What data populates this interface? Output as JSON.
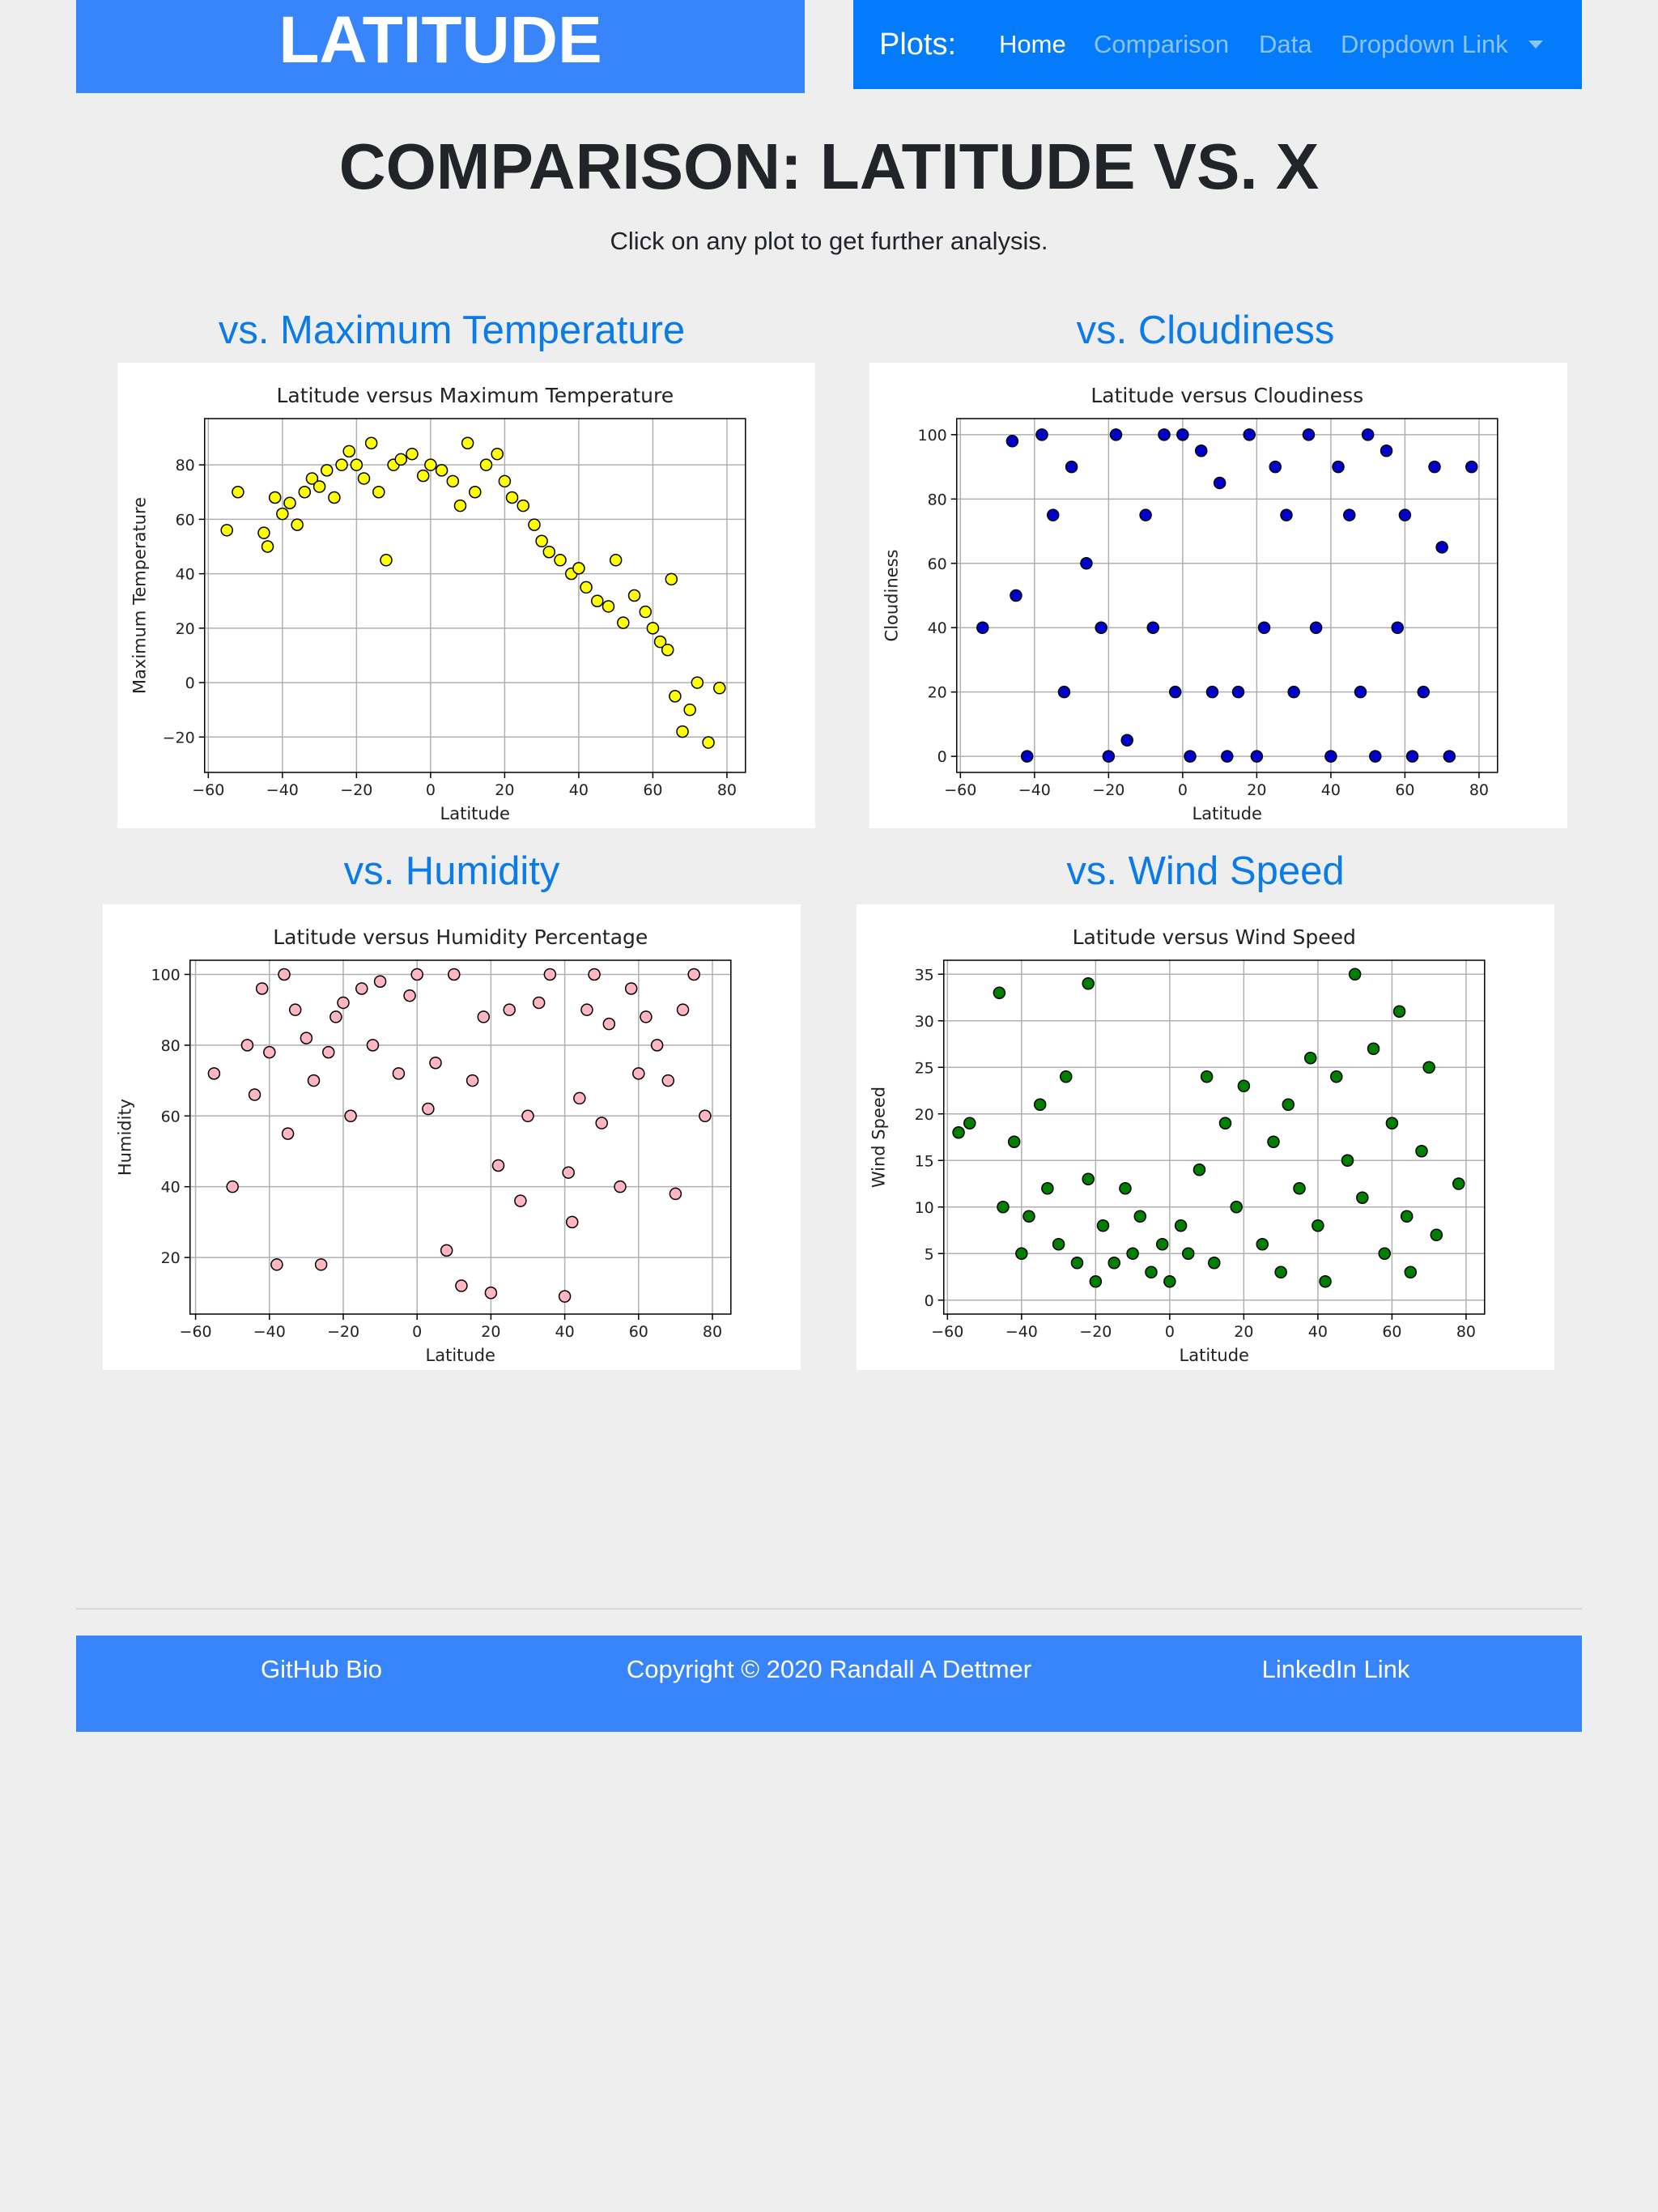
{
  "header": {
    "brand": "LATITUDE"
  },
  "nav": {
    "label": "Plots:",
    "links": [
      "Home",
      "Comparison",
      "Data",
      "Dropdown Link"
    ]
  },
  "page": {
    "title": "COMPARISON: LATITUDE VS. X",
    "subtitle": "Click on any plot to get further analysis."
  },
  "section_headings": [
    "vs. Maximum Temperature",
    "vs. Cloudiness",
    "vs. Humidity",
    "vs. Wind Speed"
  ],
  "footer": {
    "left": "GitHub Bio",
    "center": "Copyright © 2020 Randall A Dettmer",
    "right": "LinkedIn Link"
  },
  "chart_data": [
    {
      "type": "scatter",
      "title": "Latitude versus Maximum Temperature",
      "x_label": "Latitude",
      "y_label": "Maximum Temperature",
      "color": "#ffff00",
      "grid": true,
      "xlim": [
        -61,
        85
      ],
      "ylim": [
        -33,
        97
      ],
      "xticks": [
        {
          "value": -60,
          "label": "−60"
        },
        {
          "value": -40,
          "label": "−40"
        },
        {
          "value": -20,
          "label": "−20"
        },
        0,
        20,
        40,
        60,
        80
      ],
      "yticks": [
        {
          "value": -20,
          "label": "−20"
        },
        0,
        20,
        40,
        60,
        80
      ],
      "x": [
        -55,
        -52,
        -45,
        -44,
        -42,
        -40,
        -38,
        -36,
        -34,
        -32,
        -30,
        -28,
        -26,
        -24,
        -22,
        -20,
        -18,
        -16,
        -14,
        -12,
        -10,
        -8,
        -5,
        -2,
        0,
        3,
        6,
        8,
        10,
        12,
        15,
        18,
        20,
        22,
        25,
        28,
        30,
        32,
        35,
        38,
        40,
        42,
        45,
        48,
        50,
        52,
        55,
        58,
        60,
        62,
        64,
        65,
        66,
        68,
        70,
        72,
        75,
        78
      ],
      "values": [
        56,
        70,
        55,
        50,
        68,
        62,
        66,
        58,
        70,
        75,
        72,
        78,
        68,
        80,
        85,
        80,
        75,
        88,
        70,
        45,
        80,
        82,
        84,
        76,
        80,
        78,
        74,
        65,
        88,
        70,
        80,
        84,
        74,
        68,
        65,
        58,
        52,
        48,
        45,
        40,
        42,
        35,
        30,
        28,
        45,
        22,
        32,
        26,
        20,
        15,
        12,
        38,
        -5,
        -18,
        -10,
        0,
        -22,
        -2
      ]
    },
    {
      "type": "scatter",
      "title": "Latitude versus Cloudiness",
      "x_label": "Latitude",
      "y_label": "Cloudiness",
      "color": "#0000cc",
      "grid": true,
      "xlim": [
        -61,
        85
      ],
      "ylim": [
        -5,
        105
      ],
      "xticks": [
        {
          "value": -60,
          "label": "−60"
        },
        {
          "value": -40,
          "label": "−40"
        },
        {
          "value": -20,
          "label": "−20"
        },
        0,
        20,
        40,
        60,
        80
      ],
      "yticks": [
        0,
        20,
        40,
        60,
        80,
        100
      ],
      "x": [
        -54,
        -46,
        -45,
        -42,
        -38,
        -35,
        -32,
        -30,
        -26,
        -22,
        -20,
        -18,
        -15,
        -10,
        -8,
        -5,
        -2,
        0,
        2,
        5,
        8,
        10,
        12,
        15,
        18,
        20,
        22,
        25,
        28,
        30,
        34,
        36,
        40,
        42,
        45,
        48,
        50,
        52,
        55,
        58,
        60,
        62,
        65,
        68,
        70,
        72,
        78
      ],
      "values": [
        40,
        98,
        50,
        0,
        100,
        75,
        20,
        90,
        60,
        40,
        0,
        100,
        5,
        75,
        40,
        100,
        20,
        100,
        0,
        95,
        20,
        85,
        0,
        20,
        100,
        0,
        40,
        90,
        75,
        20,
        100,
        40,
        0,
        90,
        75,
        20,
        100,
        0,
        95,
        40,
        75,
        0,
        20,
        90,
        65,
        0,
        90
      ]
    },
    {
      "type": "scatter",
      "title": "Latitude versus Humidity Percentage",
      "x_label": "Latitude",
      "y_label": "Humidity",
      "color": "#ffb6c1",
      "grid": true,
      "xlim": [
        -61.5,
        85
      ],
      "ylim": [
        4,
        104
      ],
      "xticks": [
        {
          "value": -60,
          "label": "−60"
        },
        {
          "value": -40,
          "label": "−40"
        },
        {
          "value": -20,
          "label": "−20"
        },
        0,
        20,
        40,
        60,
        80
      ],
      "yticks": [
        20,
        40,
        60,
        80,
        100
      ],
      "x": [
        -55,
        -50,
        -46,
        -44,
        -42,
        -40,
        -38,
        -36,
        -35,
        -33,
        -30,
        -28,
        -26,
        -24,
        -22,
        -20,
        -18,
        -15,
        -12,
        -10,
        -5,
        -2,
        0,
        3,
        5,
        8,
        10,
        12,
        15,
        18,
        20,
        22,
        25,
        28,
        30,
        33,
        36,
        40,
        41,
        42,
        44,
        46,
        48,
        50,
        52,
        55,
        58,
        60,
        62,
        65,
        68,
        70,
        72,
        75,
        78
      ],
      "values": [
        72,
        40,
        80,
        66,
        96,
        78,
        18,
        100,
        55,
        90,
        82,
        70,
        18,
        78,
        88,
        92,
        60,
        96,
        80,
        98,
        72,
        94,
        100,
        62,
        75,
        22,
        100,
        12,
        70,
        88,
        10,
        46,
        90,
        36,
        60,
        92,
        100,
        9,
        44,
        30,
        65,
        90,
        100,
        58,
        86,
        40,
        96,
        72,
        88,
        80,
        70,
        38,
        90,
        100,
        60
      ]
    },
    {
      "type": "scatter",
      "title": "Latitude versus Wind Speed",
      "x_label": "Latitude",
      "y_label": "Wind Speed",
      "color": "#008000",
      "grid": true,
      "xlim": [
        -61,
        85
      ],
      "ylim": [
        -1.5,
        36.5
      ],
      "xticks": [
        {
          "value": -60,
          "label": "−60"
        },
        {
          "value": -40,
          "label": "−40"
        },
        {
          "value": -20,
          "label": "−20"
        },
        0,
        20,
        40,
        60,
        80
      ],
      "yticks": [
        0,
        5,
        10,
        15,
        20,
        25,
        30,
        35
      ],
      "x": [
        -57,
        -54,
        -46,
        -45,
        -42,
        -40,
        -38,
        -35,
        -33,
        -30,
        -28,
        -25,
        -22,
        -22,
        -20,
        -18,
        -15,
        -12,
        -10,
        -8,
        -5,
        -2,
        0,
        3,
        5,
        8,
        10,
        12,
        15,
        18,
        20,
        25,
        28,
        30,
        32,
        35,
        38,
        40,
        42,
        45,
        48,
        50,
        52,
        55,
        58,
        60,
        62,
        64,
        65,
        68,
        70,
        72,
        78
      ],
      "values": [
        18,
        19,
        33,
        10,
        17,
        5,
        9,
        21,
        12,
        6,
        24,
        4,
        34,
        13,
        2,
        8,
        4,
        12,
        5,
        9,
        3,
        6,
        2,
        8,
        5,
        14,
        24,
        4,
        19,
        10,
        23,
        6,
        17,
        3,
        21,
        12,
        26,
        8,
        2,
        24,
        15,
        35,
        11,
        27,
        5,
        19,
        31,
        9,
        3,
        16,
        25,
        7,
        12.5
      ]
    }
  ]
}
